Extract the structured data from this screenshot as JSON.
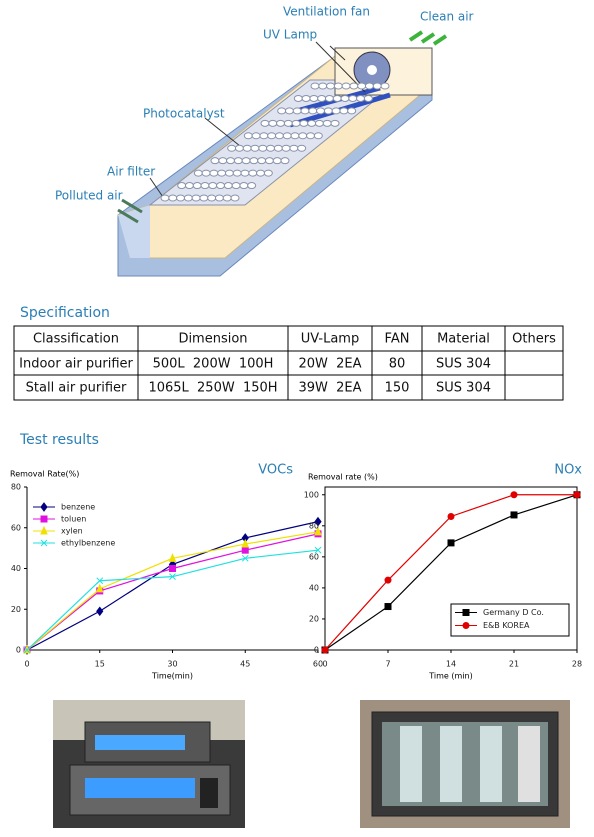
{
  "diagram": {
    "labels": [
      "Ventilation fan",
      "Clean air",
      "UV Lamp",
      "Photocatalyst",
      "Air filter",
      "Polluted air"
    ]
  },
  "specification": {
    "title": "Specification",
    "table": {
      "header": [
        "Classification",
        "Dimension",
        "UV-Lamp",
        "FAN",
        "Material",
        "Others"
      ],
      "rows": [
        [
          "Indoor air purifier",
          "500L  200W  100H",
          "20W  2EA",
          "80",
          "SUS 304"
        ],
        [
          "Stall air purifier",
          "1065L  250W  150H",
          "39W  2EA",
          "150",
          "SUS 304"
        ]
      ]
    }
  },
  "test_results": {
    "title": "Test results"
  },
  "chart_data": [
    {
      "type": "line",
      "title": "VOCs",
      "y_label": "Removal Rate(%)",
      "x_label": "Time(min)",
      "x": [
        0,
        15,
        30,
        45,
        60
      ],
      "xlim": [
        0,
        60
      ],
      "xticks": [
        0,
        15,
        30,
        45,
        60
      ],
      "ylim": [
        0,
        80
      ],
      "yticks": [
        0,
        20,
        40,
        60,
        80
      ],
      "frame": false,
      "legend": "upper left",
      "series": [
        {
          "name": "benzene",
          "color": "#000080",
          "marker": "diamond",
          "values": [
            0,
            19,
            42,
            55,
            63
          ]
        },
        {
          "name": "toluen",
          "color": "#e010e0",
          "marker": "square",
          "values": [
            0,
            29,
            40,
            49,
            57
          ]
        },
        {
          "name": "xylen",
          "color": "#f0e000",
          "marker": "triangle",
          "values": [
            0,
            30,
            45,
            52,
            58
          ]
        },
        {
          "name": "ethylbenzene",
          "color": "#20e0e0",
          "marker": "x",
          "values": [
            0,
            34,
            36,
            45,
            49
          ]
        }
      ]
    },
    {
      "type": "line",
      "title": "NOx",
      "y_label": "Removal rate (%)",
      "x_label": "Time (min)",
      "x": [
        0,
        7,
        14,
        21,
        28
      ],
      "xlim": [
        0,
        28
      ],
      "xticks": [
        0,
        7,
        14,
        21,
        28
      ],
      "ylim": [
        0,
        105
      ],
      "yticks": [
        0,
        20,
        40,
        60,
        80,
        100
      ],
      "frame": true,
      "legend": "lower right",
      "series": [
        {
          "name": "Germany D Co.",
          "color": "#000000",
          "marker": "square",
          "values": [
            0,
            28,
            69,
            87,
            100
          ]
        },
        {
          "name": "E&B KOREA",
          "color": "#e00000",
          "marker": "circle",
          "values": [
            0,
            45,
            86,
            100,
            100
          ]
        }
      ]
    }
  ]
}
